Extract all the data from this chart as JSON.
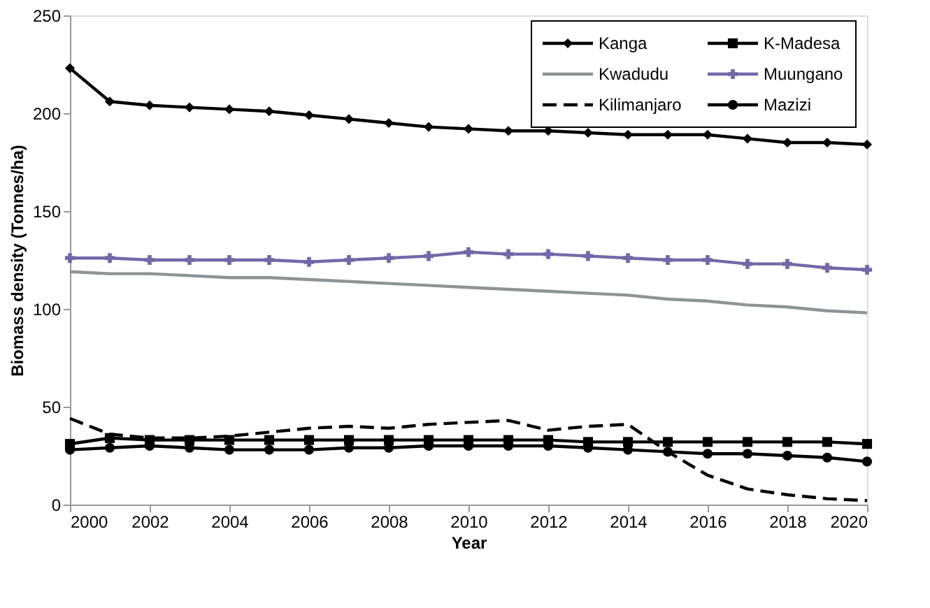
{
  "chart_data": {
    "type": "line",
    "xlabel": "Year",
    "ylabel": "Biomass density (Tonnes/ha)",
    "x": [
      2000,
      2001,
      2002,
      2003,
      2004,
      2005,
      2006,
      2007,
      2008,
      2009,
      2010,
      2011,
      2012,
      2013,
      2014,
      2015,
      2016,
      2017,
      2018,
      2019,
      2020
    ],
    "xlim": [
      2000,
      2020
    ],
    "xticks": [
      2000,
      2002,
      2004,
      2006,
      2008,
      2010,
      2012,
      2014,
      2016,
      2018,
      2020
    ],
    "ylim": [
      0,
      250
    ],
    "yticks": [
      0,
      50,
      100,
      150,
      200,
      250
    ],
    "grid": false,
    "legend": "top right",
    "series": [
      {
        "name": "Kanga",
        "color": "#000000",
        "marker": "diamond",
        "line_style": "solid",
        "values": [
          223,
          206,
          204,
          203,
          202,
          201,
          199,
          197,
          195,
          193,
          192,
          191,
          191,
          190,
          189,
          189,
          189,
          187,
          185,
          185,
          184
        ]
      },
      {
        "name": "K-Madesa",
        "color": "#000000",
        "marker": "square",
        "line_style": "solid",
        "values": [
          31,
          34,
          33,
          33,
          33,
          33,
          33,
          33,
          33,
          33,
          33,
          33,
          33,
          32,
          32,
          32,
          32,
          32,
          32,
          32,
          31
        ]
      },
      {
        "name": "Kwadudu",
        "color": "#8c9496",
        "marker": "none",
        "line_style": "solid",
        "values": [
          119,
          118,
          118,
          117,
          116,
          116,
          115,
          114,
          113,
          112,
          111,
          110,
          109,
          108,
          107,
          105,
          104,
          102,
          101,
          99,
          98
        ]
      },
      {
        "name": "Muungano",
        "color": "#7467a8",
        "marker": "cross",
        "line_style": "solid",
        "values": [
          126,
          126,
          125,
          125,
          125,
          125,
          124,
          125,
          126,
          127,
          129,
          128,
          128,
          127,
          126,
          125,
          125,
          123,
          123,
          121,
          120
        ]
      },
      {
        "name": "Kilimanjaro",
        "color": "#000000",
        "marker": "none",
        "line_style": "dashed",
        "values": [
          44,
          36,
          34,
          34,
          35,
          37,
          39,
          40,
          39,
          41,
          42,
          43,
          38,
          40,
          41,
          27,
          15,
          8,
          5,
          3,
          2
        ]
      },
      {
        "name": "Mazizi",
        "color": "#000000",
        "marker": "circle",
        "line_style": "solid",
        "values": [
          28,
          29,
          30,
          29,
          28,
          28,
          28,
          29,
          29,
          30,
          30,
          30,
          30,
          29,
          28,
          27,
          26,
          26,
          25,
          24,
          22
        ]
      }
    ]
  }
}
